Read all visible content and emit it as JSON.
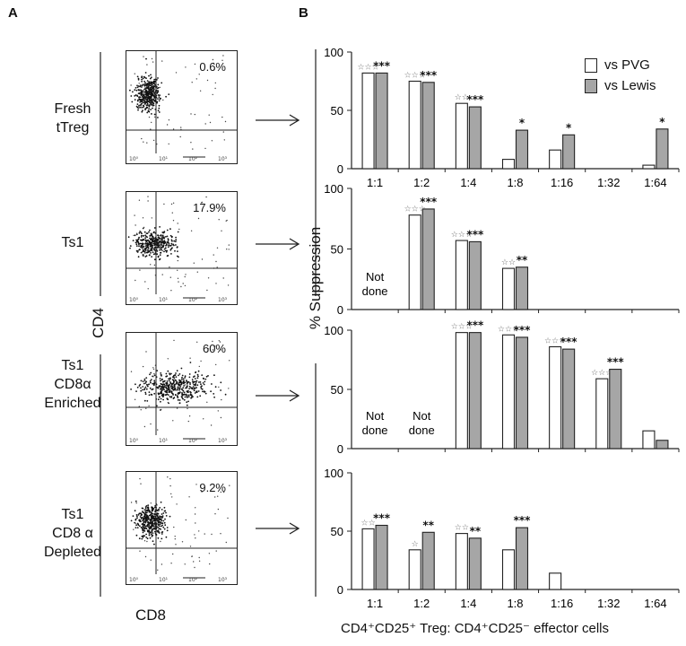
{
  "panels": {
    "a": "A",
    "b": "B"
  },
  "flow_panels": [
    {
      "label_lines": [
        "Fresh",
        "tTreg"
      ],
      "percent": "0.6%"
    },
    {
      "label_lines": [
        "Ts1"
      ],
      "percent": "17.9%"
    },
    {
      "label_lines": [
        "Ts1",
        "CD8α",
        "Enriched"
      ],
      "percent": "60%"
    },
    {
      "label_lines": [
        "Ts1",
        "CD8 α",
        "Depleted"
      ],
      "percent": "9.2%"
    }
  ],
  "flow_axes": {
    "y": "CD4",
    "x": "CD8",
    "ticks": [
      "10⁰",
      "10¹",
      "10²",
      "10³"
    ]
  },
  "chart_data": {
    "type": "bar",
    "ylabel": "% Suppression",
    "xlabel": "CD4⁺CD25⁺ Treg: CD4⁺CD25⁻ effector cells",
    "categories": [
      "1:1",
      "1:2",
      "1:4",
      "1:8",
      "1:16",
      "1:32",
      "1:64"
    ],
    "ylim": [
      0,
      100
    ],
    "yticks": [
      0,
      50,
      100
    ],
    "legend": {
      "position": "top-right",
      "entries": [
        {
          "name": "vs PVG",
          "color": "#ffffff"
        },
        {
          "name": "vs Lewis",
          "color": "#a6a6a6"
        }
      ]
    },
    "not_done_label": [
      "Not",
      "done"
    ],
    "panels": [
      {
        "row": "Fresh tTreg",
        "series": [
          {
            "name": "vs PVG",
            "values": [
              82,
              75,
              56,
              8,
              16,
              null,
              3
            ]
          },
          {
            "name": "vs Lewis",
            "values": [
              82,
              74,
              53,
              33,
              29,
              null,
              34
            ]
          }
        ],
        "significance": {
          "vs PVG": [
            "☆☆☆",
            "☆☆☆",
            "☆☆",
            "",
            "",
            "",
            ""
          ],
          "vs Lewis": [
            "***",
            "***",
            "***",
            "*",
            "*",
            "",
            "*"
          ]
        },
        "not_done": []
      },
      {
        "row": "Ts1",
        "series": [
          {
            "name": "vs PVG",
            "values": [
              null,
              78,
              57,
              34,
              0,
              0,
              0
            ]
          },
          {
            "name": "vs Lewis",
            "values": [
              null,
              83,
              56,
              35,
              0,
              0,
              0
            ]
          }
        ],
        "significance": {
          "vs PVG": [
            "",
            "☆☆☆",
            "☆☆☆",
            "☆☆",
            "",
            "",
            ""
          ],
          "vs Lewis": [
            "",
            "***",
            "***",
            "**",
            "",
            "",
            ""
          ]
        },
        "not_done": [
          0
        ]
      },
      {
        "row": "Ts1 CD8α Enriched",
        "series": [
          {
            "name": "vs PVG",
            "values": [
              null,
              null,
              98,
              96,
              86,
              59,
              15
            ]
          },
          {
            "name": "vs Lewis",
            "values": [
              null,
              null,
              98,
              94,
              84,
              67,
              7
            ]
          }
        ],
        "significance": {
          "vs PVG": [
            "",
            "",
            "☆☆☆",
            "☆☆☆",
            "☆☆☆",
            "☆☆☆",
            ""
          ],
          "vs Lewis": [
            "",
            "",
            "***",
            "***",
            "***",
            "***",
            ""
          ]
        },
        "not_done": [
          0,
          1
        ]
      },
      {
        "row": "Ts1 CD8 α Depleted",
        "series": [
          {
            "name": "vs PVG",
            "values": [
              52,
              34,
              48,
              34,
              14,
              null,
              null
            ]
          },
          {
            "name": "vs Lewis",
            "values": [
              55,
              49,
              44,
              53,
              null,
              null,
              null
            ]
          }
        ],
        "significance": {
          "vs PVG": [
            "☆☆",
            "☆",
            "☆☆",
            "",
            "",
            "",
            ""
          ],
          "vs Lewis": [
            "***",
            "**",
            "**",
            "***",
            "",
            "",
            ""
          ]
        },
        "not_done": []
      }
    ]
  }
}
